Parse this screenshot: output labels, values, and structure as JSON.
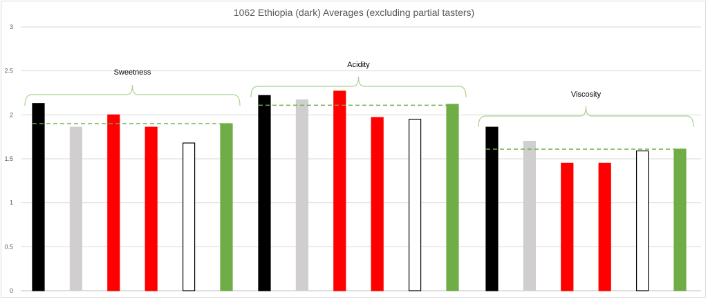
{
  "chart_data": {
    "type": "bar",
    "title": "1062 Ethiopia (dark) Averages (excluding partial tasters)",
    "xlabel": "",
    "ylabel": "",
    "ylim": [
      0,
      3
    ],
    "yticks": [
      "0",
      "0.5",
      "1",
      "1.5",
      "2",
      "2.5",
      "3"
    ],
    "grid": true,
    "legend": "none",
    "categories": [
      "Sweetness",
      "Acidity",
      "Viscosity"
    ],
    "bar_styles": [
      {
        "fill": "#000000",
        "stroke": "#000000"
      },
      {
        "fill": "#d0cece",
        "stroke": "#d0cece"
      },
      {
        "fill": "#ff0000",
        "stroke": "#ff0000"
      },
      {
        "fill": "#ff0000",
        "stroke": "#ff0000"
      },
      {
        "fill": "#ffffff",
        "stroke": "#000000"
      },
      {
        "fill": "#70ad47",
        "stroke": "#70ad47"
      }
    ],
    "groups": [
      {
        "label": "Sweetness",
        "values": [
          2.13,
          1.86,
          2.0,
          1.86,
          1.68,
          1.9
        ],
        "average": 1.9
      },
      {
        "label": "Acidity",
        "values": [
          2.22,
          2.17,
          2.27,
          1.97,
          1.95,
          2.12
        ],
        "average": 2.11
      },
      {
        "label": "Viscosity",
        "values": [
          1.86,
          1.7,
          1.45,
          1.45,
          1.59,
          1.61
        ],
        "average": 1.61
      }
    ],
    "colors": {
      "grid": "#d9d9d9",
      "axis": "#bfbfbf",
      "brace": "#a9d18e",
      "average_line": "#70ad47"
    }
  }
}
